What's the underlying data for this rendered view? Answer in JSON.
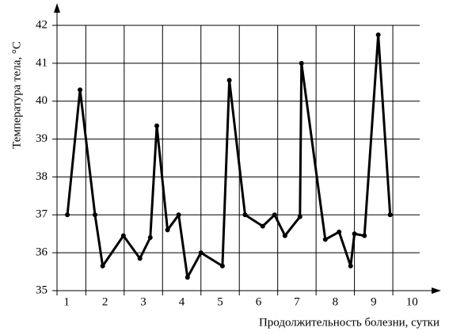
{
  "chart_data": {
    "type": "line",
    "x_label": "Продолжительность болезни, сутки",
    "y_label": "Температура тела, °С",
    "x": [
      0.52,
      0.85,
      1.24,
      1.44,
      1.98,
      2.41,
      2.68,
      2.85,
      3.13,
      3.42,
      3.65,
      4.0,
      4.56,
      4.74,
      5.15,
      5.61,
      5.92,
      6.19,
      6.58,
      6.62,
      7.24,
      7.6,
      7.9,
      8.0,
      8.26,
      8.62,
      8.93
    ],
    "series": [
      {
        "color": "#000000",
        "values": [
          37.0,
          40.3,
          37.0,
          35.65,
          36.45,
          35.85,
          36.4,
          39.35,
          36.6,
          37.0,
          35.35,
          36.0,
          35.65,
          40.55,
          37.0,
          36.7,
          37.0,
          36.45,
          36.95,
          41.0,
          36.35,
          36.55,
          35.65,
          36.5,
          36.45,
          41.75,
          37.0
        ]
      }
    ],
    "xlim": [
      0.25,
      9.7
    ],
    "ylim": [
      35,
      42
    ],
    "xticks": [
      {
        "value": 0.5,
        "label": "1"
      },
      {
        "value": 1.5,
        "label": "2"
      },
      {
        "value": 2.5,
        "label": "3"
      },
      {
        "value": 3.5,
        "label": "4"
      },
      {
        "value": 4.5,
        "label": "5"
      },
      {
        "value": 5.5,
        "label": "6"
      },
      {
        "value": 6.5,
        "label": "7"
      },
      {
        "value": 7.5,
        "label": "8"
      },
      {
        "value": 8.5,
        "label": "9"
      },
      {
        "value": 9.5,
        "label": "10"
      }
    ],
    "xgrid": [
      1,
      2,
      3,
      4,
      5,
      6,
      7,
      8,
      9
    ],
    "yticks": [
      35,
      36,
      37,
      38,
      39,
      40,
      41,
      42
    ],
    "grid": true
  }
}
